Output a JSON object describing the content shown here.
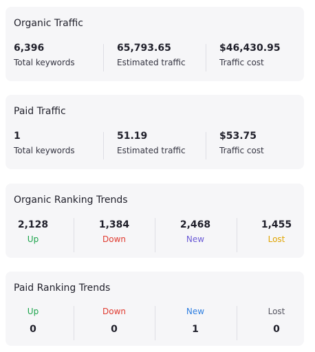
{
  "organic_traffic": {
    "title": "Organic Traffic",
    "metrics": [
      {
        "value": "6,396",
        "label": "Total keywords"
      },
      {
        "value": "65,793.65",
        "label": "Estimated traffic"
      },
      {
        "value": "$46,430.95",
        "label": "Traffic cost"
      }
    ]
  },
  "paid_traffic": {
    "title": "Paid Traffic",
    "metrics": [
      {
        "value": "1",
        "label": "Total keywords"
      },
      {
        "value": "51.19",
        "label": "Estimated traffic"
      },
      {
        "value": "$53.75",
        "label": "Traffic cost"
      }
    ]
  },
  "organic_trends": {
    "title": "Organic Ranking Trends",
    "items": [
      {
        "value": "2,128",
        "label": "Up"
      },
      {
        "value": "1,384",
        "label": "Down"
      },
      {
        "value": "2,468",
        "label": "New"
      },
      {
        "value": "1,455",
        "label": "Lost"
      }
    ]
  },
  "paid_trends": {
    "title": "Paid Ranking Trends",
    "items": [
      {
        "value": "0",
        "label": "Up"
      },
      {
        "value": "0",
        "label": "Down"
      },
      {
        "value": "1",
        "label": "New"
      },
      {
        "value": "0",
        "label": "Lost"
      }
    ]
  },
  "colors": {
    "up": "#1aa34a",
    "down": "#e03a2f",
    "new_organic": "#6b5bd6",
    "new_paid": "#2f7fe0",
    "lost_organic": "#e0a400",
    "lost_paid": "#555560"
  }
}
